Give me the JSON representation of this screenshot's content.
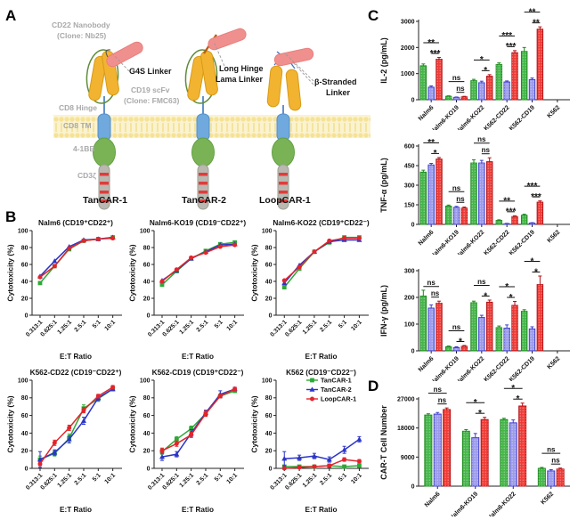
{
  "figure": {
    "panels": {
      "a": "A",
      "b": "B",
      "c": "C",
      "d": "D"
    }
  },
  "panelA": {
    "labels": {
      "cd22_nanobody": "CD22 Nanobody",
      "cd22_clone": "(Clone: Nb25)",
      "g4s_linker": "G4S Linker",
      "cd19_scfv": "CD19 scFv",
      "cd19_clone": "(Clone: FMC63)",
      "cd8_hinge": "CD8 Hinge",
      "cd8_tm": "CD8 TM",
      "four_1bb": "4-1BB",
      "cd3z": "CD3ζ",
      "long_hinge_line1": "Long Hinge",
      "long_hinge_line2": "Lama Linker",
      "beta_line1": "β-Stranded",
      "beta_line2": "Linker",
      "construct1": "TanCAR-1",
      "construct2": "TanCAR-2",
      "construct3": "LoopCAR-1"
    },
    "colors": {
      "nanobody_pink": "#F0908E",
      "scfv_yellow": "#F2B430",
      "tm_blue": "#70A9DD",
      "costim_green": "#79B356",
      "cd3z_gray": "#B9B9B1",
      "stripe_red": "#E23B3B",
      "membrane_yellow": "#FBF3CF"
    }
  },
  "series_colors": {
    "tancar1_green": "#2EA836",
    "tancar2_blue": "#2B35C7",
    "loopcar1_red": "#E3242B"
  },
  "chart_data": [
    {
      "id": "b1",
      "type": "line",
      "title": "Nalm6 (CD19⁺CD22⁺)",
      "xlabel": "E:T Ratio",
      "ylabel": "Cytotoxicity (%)",
      "ylim": [
        0,
        100
      ],
      "yticks": [
        0,
        20,
        40,
        60,
        80,
        100
      ],
      "categories": [
        "0.313:1",
        "0.625:1",
        "1.25:1",
        "2.5:1",
        "5:1",
        "10:1"
      ],
      "series": [
        {
          "name": "TanCAR-1",
          "color": "#2EA836",
          "marker": "square",
          "values": [
            38,
            58,
            78,
            88,
            90,
            92
          ]
        },
        {
          "name": "TanCAR-2",
          "color": "#2B35C7",
          "marker": "triangle",
          "values": [
            46,
            64,
            81,
            89,
            90,
            92
          ]
        },
        {
          "name": "LoopCAR-1",
          "color": "#E3242B",
          "marker": "circle",
          "values": [
            45,
            58,
            79,
            88,
            90,
            91
          ]
        }
      ]
    },
    {
      "id": "b2",
      "type": "line",
      "title": "Nalm6-KO19 (CD19⁻CD22⁺)",
      "xlabel": "E:T Ratio",
      "ylabel": "Cytotoxicity (%)",
      "ylim": [
        0,
        100
      ],
      "yticks": [
        0,
        20,
        40,
        60,
        80,
        100
      ],
      "categories": [
        "0.313:1",
        "0.625:1",
        "1.25:1",
        "2.5:1",
        "5:1",
        "10:1"
      ],
      "series": [
        {
          "name": "TanCAR-1",
          "color": "#2EA836",
          "marker": "square",
          "values": [
            36,
            52,
            67,
            76,
            84,
            86
          ]
        },
        {
          "name": "TanCAR-2",
          "color": "#2B35C7",
          "marker": "triangle",
          "values": [
            41,
            53,
            67,
            75,
            83,
            84
          ]
        },
        {
          "name": "LoopCAR-1",
          "color": "#E3242B",
          "marker": "circle",
          "values": [
            40,
            54,
            68,
            74,
            81,
            83
          ]
        }
      ]
    },
    {
      "id": "b3",
      "type": "line",
      "title": "Nalm6-KO22 (CD19⁺CD22⁻)",
      "xlabel": "E:T Ratio",
      "ylabel": "Cytotoxicity (%)",
      "ylim": [
        0,
        100
      ],
      "yticks": [
        0,
        20,
        40,
        60,
        80,
        100
      ],
      "categories": [
        "0.313:1",
        "0.625:1",
        "1.25:1",
        "2.5:1",
        "5:1",
        "10:1"
      ],
      "series": [
        {
          "name": "TanCAR-1",
          "color": "#2EA836",
          "marker": "square",
          "values": [
            33,
            55,
            75,
            86,
            92,
            92
          ]
        },
        {
          "name": "TanCAR-2",
          "color": "#2B35C7",
          "marker": "triangle",
          "values": [
            38,
            59,
            75,
            87,
            89,
            89
          ]
        },
        {
          "name": "LoopCAR-1",
          "color": "#E3242B",
          "marker": "circle",
          "values": [
            41,
            57,
            75,
            88,
            91,
            91
          ]
        }
      ]
    },
    {
      "id": "b4",
      "type": "line",
      "title": "K562-CD22 (CD19⁻CD22⁺)",
      "xlabel": "E:T Ratio",
      "ylabel": "Cytotoxicity (%)",
      "ylim": [
        0,
        100
      ],
      "yticks": [
        0,
        20,
        40,
        60,
        80,
        100
      ],
      "categories": [
        "0.313:1",
        "0.625:1",
        "1.25:1",
        "2.5:1",
        "5:1",
        "10:1"
      ],
      "series": [
        {
          "name": "TanCAR-1",
          "color": "#2EA836",
          "marker": "square",
          "values": [
            10,
            17,
            34,
            68,
            79,
            90
          ],
          "err": [
            4,
            3,
            5,
            4,
            3,
            2
          ]
        },
        {
          "name": "TanCAR-2",
          "color": "#2B35C7",
          "marker": "triangle",
          "values": [
            10,
            18,
            33,
            54,
            80,
            90
          ],
          "err": [
            9,
            3,
            4,
            4,
            3,
            2
          ]
        },
        {
          "name": "LoopCAR-1",
          "color": "#E3242B",
          "marker": "circle",
          "values": [
            5,
            29,
            46,
            66,
            82,
            92
          ],
          "err": [
            2,
            3,
            3,
            3,
            2,
            2
          ]
        }
      ]
    },
    {
      "id": "b5",
      "type": "line",
      "title": "K562-CD19 (CD19⁺CD22⁻)",
      "xlabel": "E:T Ratio",
      "ylabel": "Cytotoxicity (%)",
      "ylim": [
        0,
        100
      ],
      "yticks": [
        0,
        20,
        40,
        60,
        80,
        100
      ],
      "categories": [
        "0.313:1",
        "0.625:1",
        "1.25:1",
        "2.5:1",
        "5:1",
        "10:1"
      ],
      "series": [
        {
          "name": "TanCAR-1",
          "color": "#2EA836",
          "marker": "square",
          "values": [
            19,
            33,
            45,
            62,
            82,
            88
          ],
          "err": [
            3,
            3,
            3,
            3,
            2,
            2
          ]
        },
        {
          "name": "TanCAR-2",
          "color": "#2B35C7",
          "marker": "triangle",
          "values": [
            13,
            16,
            40,
            63,
            84,
            90
          ],
          "err": [
            4,
            3,
            4,
            3,
            4,
            2
          ]
        },
        {
          "name": "LoopCAR-1",
          "color": "#E3242B",
          "marker": "circle",
          "values": [
            20,
            28,
            38,
            62,
            82,
            90
          ],
          "err": [
            3,
            3,
            3,
            3,
            2,
            2
          ]
        }
      ]
    },
    {
      "id": "b6",
      "type": "line",
      "title": "K562 (CD19⁻CD22⁻)",
      "xlabel": "E:T Ratio",
      "ylabel": "Cytotoxicity (%)",
      "ylim": [
        0,
        100
      ],
      "yticks": [
        0,
        20,
        40,
        60,
        80,
        100
      ],
      "legend": true,
      "categories": [
        "0.313:1",
        "0.625:1",
        "1.25:1",
        "2.5:1",
        "5:1",
        "10:1"
      ],
      "series": [
        {
          "name": "TanCAR-1",
          "color": "#2EA836",
          "marker": "square",
          "values": [
            2,
            2,
            2,
            3,
            2,
            3
          ],
          "err": [
            1,
            1,
            1,
            1,
            1,
            1
          ]
        },
        {
          "name": "TanCAR-2",
          "color": "#2B35C7",
          "marker": "triangle",
          "values": [
            11,
            12,
            14,
            10,
            21,
            33
          ],
          "err": [
            8,
            3,
            3,
            3,
            4,
            3
          ]
        },
        {
          "name": "LoopCAR-1",
          "color": "#E3242B",
          "marker": "circle",
          "values": [
            0,
            1,
            2,
            3,
            10,
            8
          ],
          "err": [
            1,
            1,
            1,
            1,
            2,
            2
          ]
        }
      ]
    },
    {
      "id": "c1",
      "type": "bar",
      "ylabel": "IL-2 (pg/mL)",
      "ylim": [
        0,
        3000
      ],
      "yticks": [
        0,
        1000,
        2000,
        3000
      ],
      "categories": [
        "Nalm6",
        "Nalm6-KO19",
        "Nalm6-KO22",
        "K562-CD22",
        "K562-CD19",
        "K562"
      ],
      "series": [
        {
          "name": "TanCAR-1",
          "color": "#45B649",
          "edge": "#1B8A1B",
          "values": [
            1300,
            130,
            730,
            1350,
            1850,
            0
          ],
          "err": [
            70,
            20,
            50,
            60,
            150,
            0
          ]
        },
        {
          "name": "TanCAR-2",
          "color": "#9B9BEB",
          "edge": "#3D3DCC",
          "values": [
            480,
            90,
            650,
            680,
            770,
            0
          ],
          "err": [
            50,
            15,
            60,
            40,
            60,
            0
          ]
        },
        {
          "name": "LoopCAR-1",
          "color": "#EF3B36",
          "edge": "#B31217",
          "values": [
            1550,
            110,
            900,
            1800,
            2700,
            0
          ],
          "err": [
            70,
            20,
            60,
            80,
            90,
            0
          ]
        }
      ],
      "sig": [
        [
          "**",
          "***"
        ],
        [
          "ns",
          "ns"
        ],
        [
          "*",
          "*"
        ],
        [
          "***",
          "***"
        ],
        [
          "**",
          "**"
        ],
        null
      ]
    },
    {
      "id": "c2",
      "type": "bar",
      "ylabel": "TNF-α (pg/mL)",
      "ylim": [
        0,
        600
      ],
      "yticks": [
        0,
        150,
        300,
        450,
        600
      ],
      "categories": [
        "Nalm6",
        "Nalm6-KO19",
        "Nalm6-KO22",
        "K562-CD22",
        "K562-CD19",
        "K562"
      ],
      "series": [
        {
          "name": "TanCAR-1",
          "color": "#45B649",
          "edge": "#1B8A1B",
          "values": [
            400,
            140,
            470,
            30,
            70,
            0
          ],
          "err": [
            15,
            8,
            25,
            5,
            8,
            0
          ]
        },
        {
          "name": "TanCAR-2",
          "color": "#9B9BEB",
          "edge": "#3D3DCC",
          "values": [
            455,
            130,
            470,
            5,
            10,
            0
          ],
          "err": [
            12,
            8,
            20,
            3,
            3,
            0
          ]
        },
        {
          "name": "LoopCAR-1",
          "color": "#EF3B36",
          "edge": "#B31217",
          "values": [
            500,
            125,
            480,
            60,
            170,
            0
          ],
          "err": [
            12,
            8,
            30,
            6,
            10,
            0
          ]
        }
      ],
      "sig": [
        [
          "**",
          "*"
        ],
        [
          "ns",
          "ns"
        ],
        [
          "ns",
          "ns"
        ],
        [
          "**",
          "***"
        ],
        [
          "***",
          "***"
        ],
        null
      ]
    },
    {
      "id": "c3",
      "type": "bar",
      "ylabel": "IFN-γ (pg/mL)",
      "ylim": [
        0,
        300
      ],
      "yticks": [
        0,
        100,
        200,
        300
      ],
      "categories": [
        "Nalm6",
        "Nalm6-KO19",
        "Nalm6-KO22",
        "K562-CD22",
        "K562-CD19",
        "K562"
      ],
      "series": [
        {
          "name": "TanCAR-1",
          "color": "#45B649",
          "edge": "#1B8A1B",
          "values": [
            205,
            15,
            180,
            87,
            148,
            0
          ],
          "err": [
            22,
            3,
            6,
            6,
            6,
            0
          ]
        },
        {
          "name": "TanCAR-2",
          "color": "#9B9BEB",
          "edge": "#3D3DCC",
          "values": [
            160,
            12,
            125,
            85,
            82,
            0
          ],
          "err": [
            12,
            3,
            8,
            12,
            8,
            0
          ]
        },
        {
          "name": "LoopCAR-1",
          "color": "#EF3B36",
          "edge": "#B31217",
          "values": [
            178,
            17,
            182,
            170,
            248,
            0
          ],
          "err": [
            8,
            3,
            8,
            15,
            32,
            0
          ]
        }
      ],
      "sig": [
        [
          "ns",
          "ns"
        ],
        [
          "ns",
          "*"
        ],
        [
          "ns",
          "*"
        ],
        [
          "*",
          "*"
        ],
        [
          "*",
          "*"
        ],
        null
      ]
    },
    {
      "id": "d",
      "type": "bar",
      "ylabel": "CAR-T Cell Number",
      "ylim": [
        0,
        27000
      ],
      "yticks": [
        0,
        9000,
        18000,
        27000
      ],
      "categories": [
        "Nalm6",
        "Nalm6-KO19",
        "Nalm6-KO22",
        "K562"
      ],
      "series": [
        {
          "name": "TanCAR-1",
          "color": "#45B649",
          "edge": "#1B8A1B",
          "values": [
            22000,
            17000,
            20600,
            5500
          ],
          "err": [
            400,
            500,
            400,
            300
          ]
        },
        {
          "name": "TanCAR-2",
          "color": "#9B9BEB",
          "edge": "#3D3DCC",
          "values": [
            22300,
            15000,
            19600,
            4700
          ],
          "err": [
            500,
            1300,
            900,
            400
          ]
        },
        {
          "name": "LoopCAR-1",
          "color": "#EF3B36",
          "edge": "#B31217",
          "values": [
            23700,
            20600,
            24800,
            5300
          ],
          "err": [
            500,
            700,
            900,
            300
          ]
        }
      ],
      "sig": [
        [
          "ns",
          "ns"
        ],
        [
          "*",
          "*"
        ],
        [
          "*",
          "*"
        ],
        [
          "ns",
          "ns"
        ]
      ]
    }
  ]
}
